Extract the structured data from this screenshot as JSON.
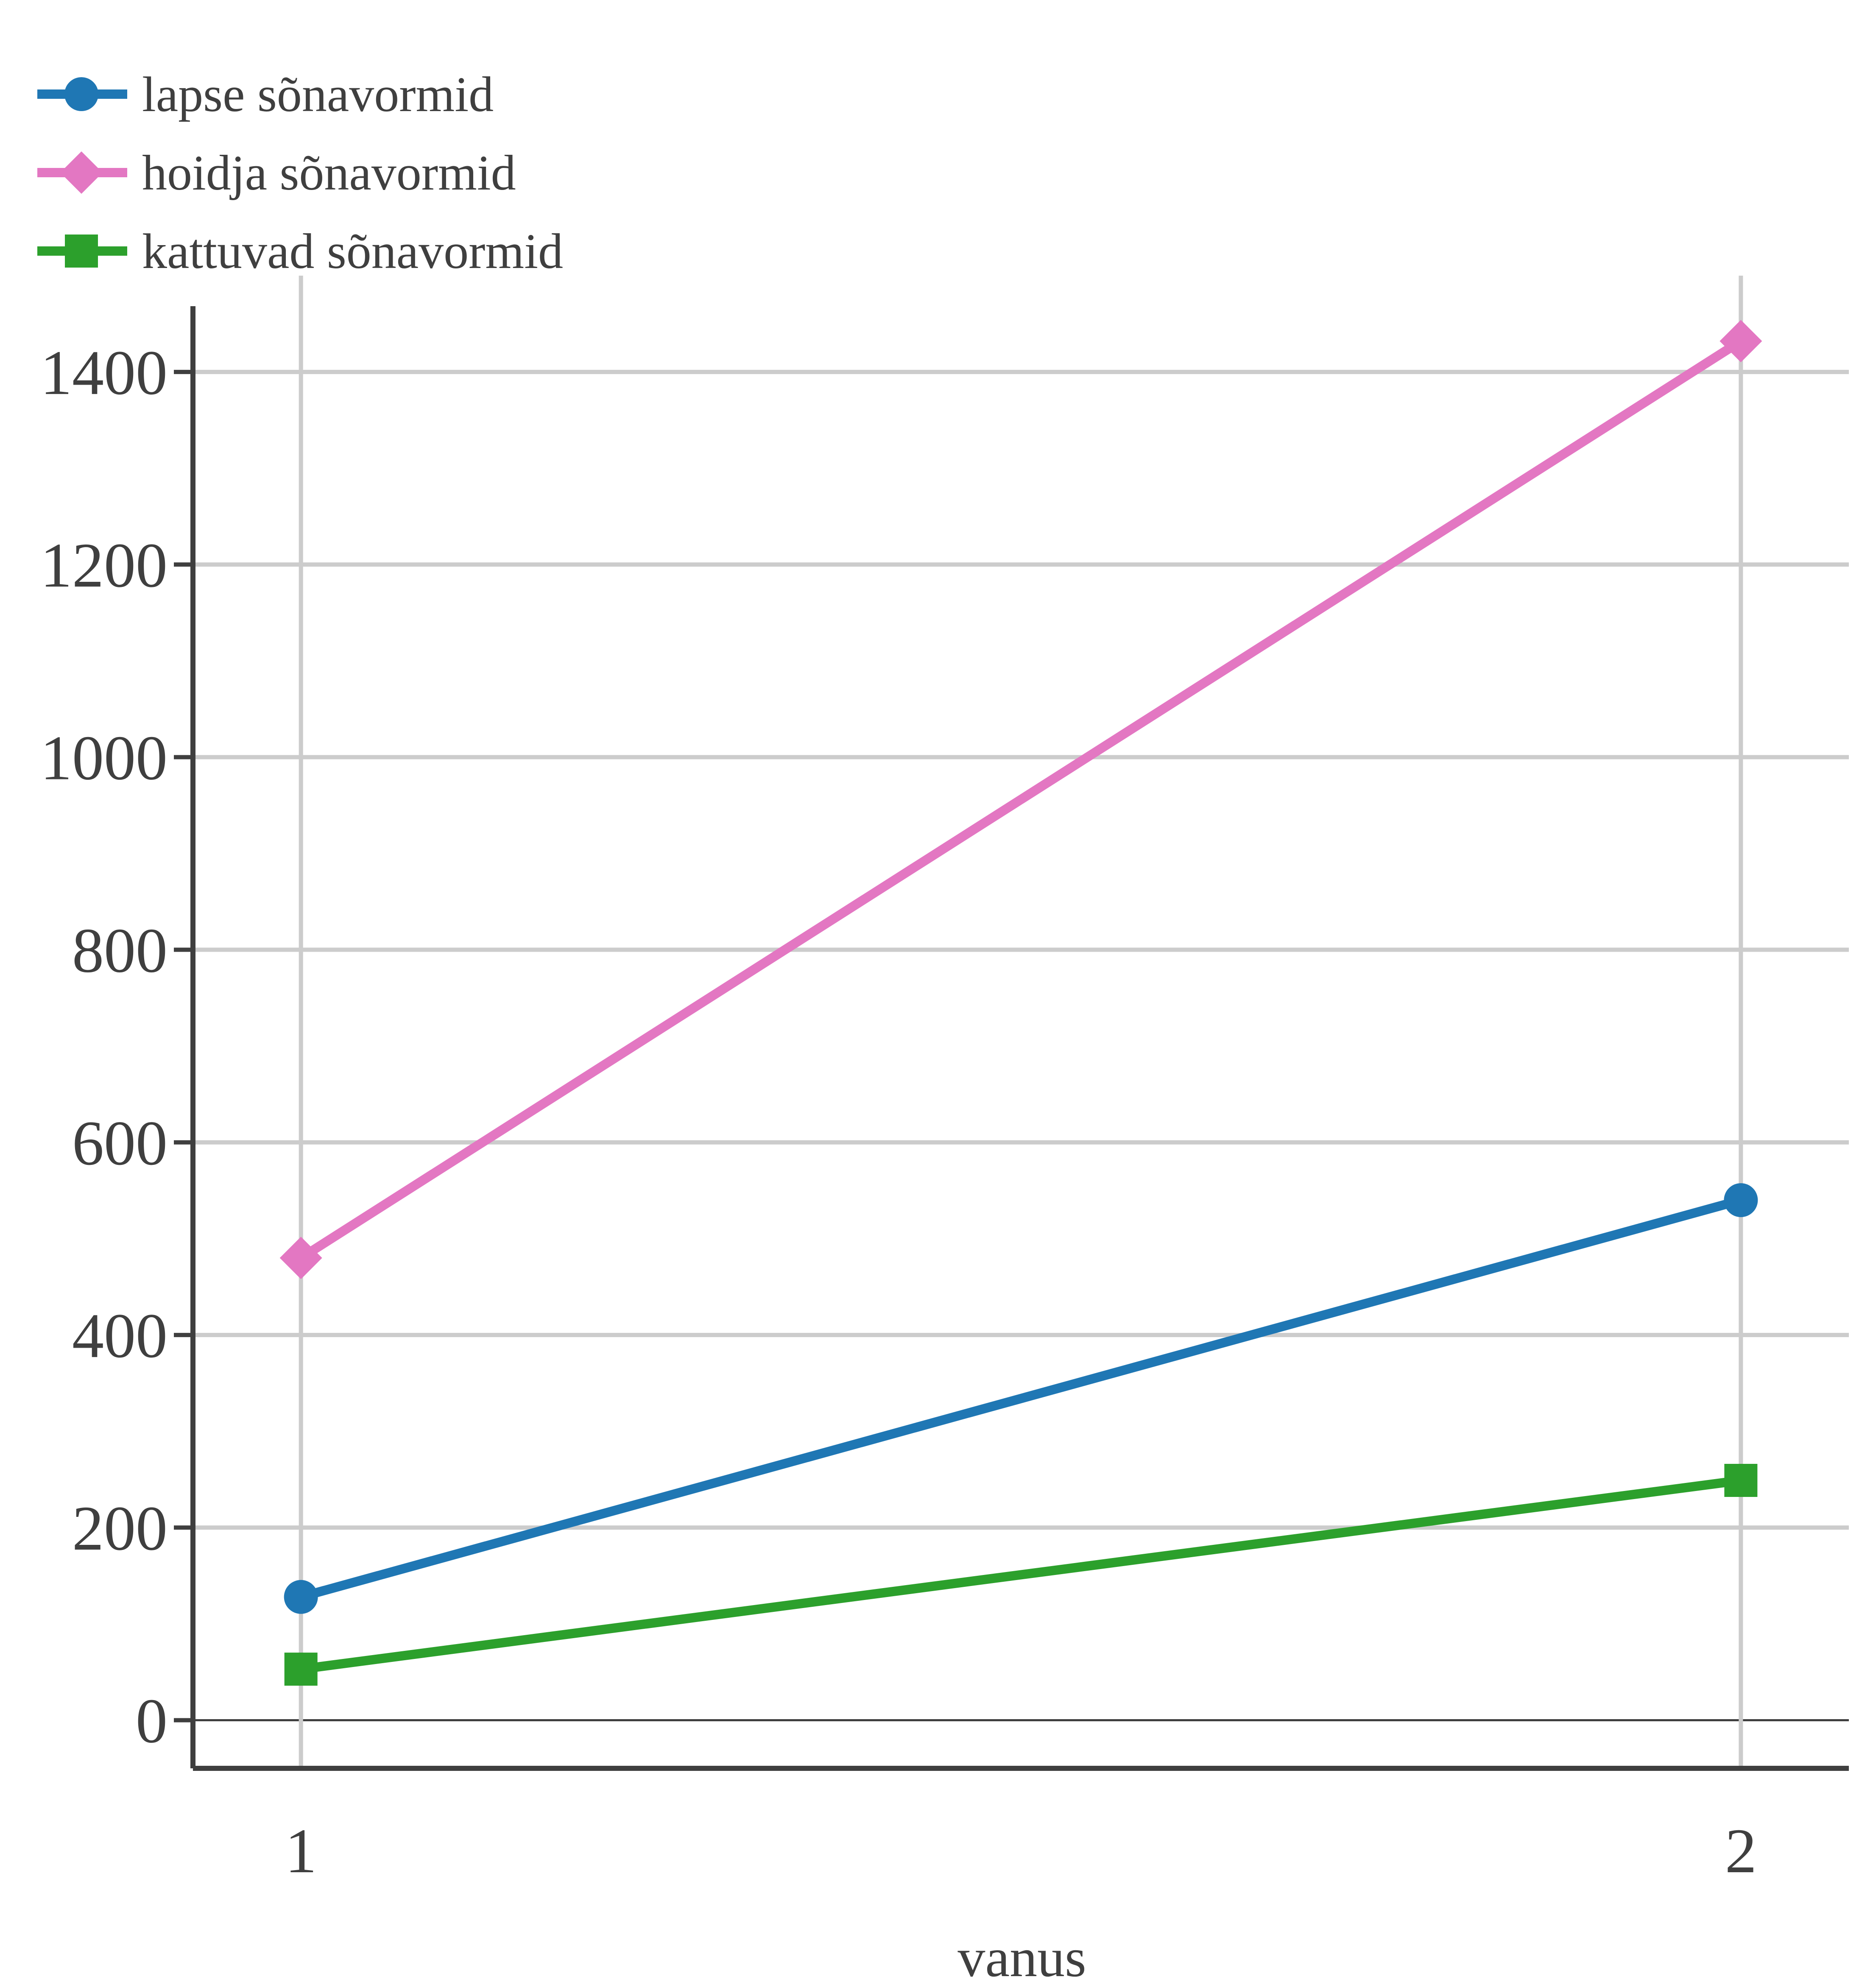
{
  "chart_data": {
    "type": "line",
    "xlabel": "vanus",
    "ylabel": "",
    "x": [
      1,
      2
    ],
    "xticks": [
      "1",
      "2"
    ],
    "xlim": [
      0.925,
      2.075
    ],
    "ylim": [
      -50,
      1500
    ],
    "yticks": [
      0,
      200,
      400,
      600,
      800,
      1000,
      1200,
      1400
    ],
    "grid": true,
    "legend": "top-left",
    "series": [
      {
        "name": "lapse sõnavormid",
        "values": [
          128,
          540
        ],
        "color": "#1f77b4",
        "marker": "circle"
      },
      {
        "name": "hoidja sõnavormid",
        "values": [
          480,
          1432
        ],
        "color": "#e377c2",
        "marker": "diamond"
      },
      {
        "name": "kattuvad sõnavormid",
        "values": [
          53,
          249
        ],
        "color": "#2ca02c",
        "marker": "square"
      }
    ]
  }
}
